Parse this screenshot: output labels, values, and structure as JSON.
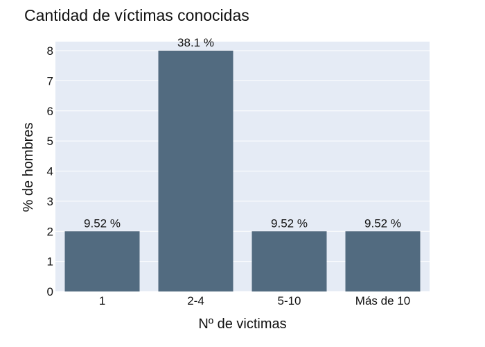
{
  "chart_data": {
    "type": "bar",
    "title": "Cantidad de víctimas conocidas",
    "xlabel": "Nº de victimas",
    "ylabel": "% de hombres",
    "categories": [
      "1",
      "2-4",
      "5-10",
      "Más de 10"
    ],
    "values": [
      2,
      8,
      2,
      2
    ],
    "data_labels": [
      "9.52 %",
      "38.1 %",
      "9.52 %",
      "9.52 %"
    ],
    "ylim": [
      0,
      8.3
    ],
    "yticks": [
      0,
      1,
      2,
      3,
      4,
      5,
      6,
      7,
      8
    ],
    "grid": true,
    "bar_color": "#526b80",
    "plot_background": "#e5ebf5",
    "grid_color": "#ffffff"
  }
}
